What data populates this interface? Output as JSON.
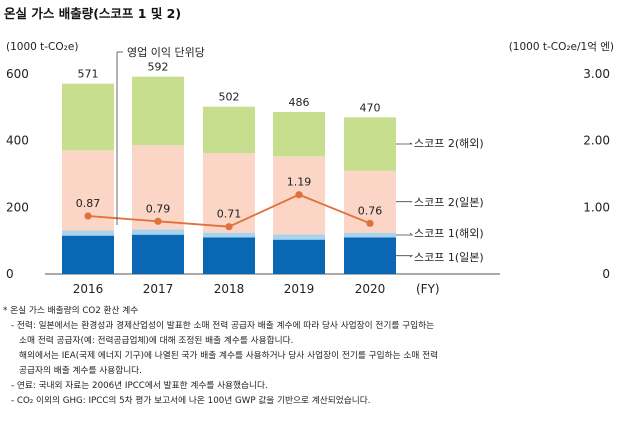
{
  "title": "온실 가스 배출량(스코프 1 및 2)",
  "chart_data": {
    "type": "bar",
    "stacked": true,
    "title": "온실 가스 배출량(스코프 1 및 2)",
    "left_unit": "(1000 t-CO₂e)",
    "right_unit": "(1000 t-CO₂e/1억 엔)",
    "x_axis_unit": "(FY)",
    "categories": [
      "2016",
      "2017",
      "2018",
      "2019",
      "2020"
    ],
    "ylim_left": [
      0,
      600
    ],
    "yticks_left": [
      "0",
      "200",
      "400",
      "600"
    ],
    "ylim_right": [
      0,
      3.0
    ],
    "yticks_right": [
      "0",
      "1.00",
      "2.00",
      "3.00"
    ],
    "series": [
      {
        "name": "스코프 1(일본)",
        "color": "#0a67b4",
        "values": [
          115,
          118,
          110,
          103,
          110
        ]
      },
      {
        "name": "스코프 1(해외)",
        "color": "#a9d3ea",
        "values": [
          16,
          16,
          14,
          16,
          14
        ]
      },
      {
        "name": "스코프 2(일본)",
        "color": "#fbd6c6",
        "values": [
          240,
          252,
          238,
          234,
          186
        ]
      },
      {
        "name": "스코프 2(해외)",
        "color": "#c7de8e",
        "values": [
          200,
          206,
          140,
          133,
          160
        ]
      }
    ],
    "totals": [
      "571",
      "592",
      "502",
      "486",
      "470"
    ],
    "line_series": {
      "name": "영업 이익 단위당",
      "color": "#e0713d",
      "axis": "right",
      "values": [
        0.87,
        0.79,
        0.71,
        1.19,
        0.76
      ],
      "labels": [
        "0.87",
        "0.79",
        "0.71",
        "1.19",
        "0.76"
      ]
    },
    "grid": false
  },
  "notes": {
    "n1": "* 온실 가스 배출량의 CO2 환산 계수",
    "n2": "- 전력: 일본에서는 환경성과 경제산업성이 발표한 소매 전력 공급자 배출 계수에 따라 당사 사업장이 전기를 구입하는",
    "n3": "소매 전력 공급자(예: 전력공급업체)에 대해 조정된 배출 계수를 사용합니다.",
    "n4": "해외에서는 IEA(국제 에너지 기구)에 나열된 국가 배출 계수를 사용하거나 당사 사업장이 전기를 구입하는 소매 전력",
    "n5": "공급자의 배출 계수를 사용합니다.",
    "n6": "- 연료: 국내외 자료는 2006년 IPCC에서 발표한 계수를 사용했습니다.",
    "n7": "- CO₂ 이외의 GHG: IPCC의 5차 평가 보고서에 나온 100년 GWP 값을 기반으로 계산되었습니다."
  }
}
